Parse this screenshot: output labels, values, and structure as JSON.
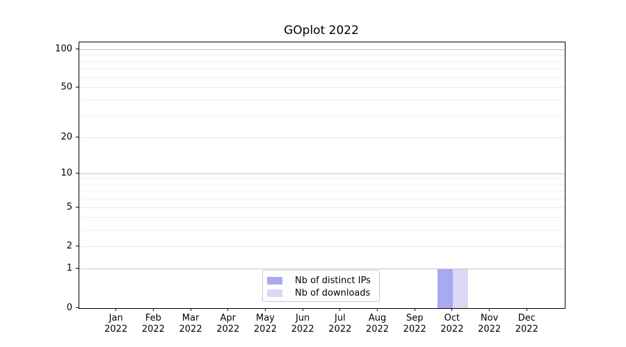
{
  "chart_data": {
    "type": "bar",
    "title": "GOplot 2022",
    "x": {
      "categories": [
        "Jan",
        "Feb",
        "Mar",
        "Apr",
        "May",
        "Jun",
        "Jul",
        "Aug",
        "Sep",
        "Oct",
        "Nov",
        "Dec"
      ],
      "year_label": "2022"
    },
    "y": {
      "scale": "log1p",
      "tick_labels": [
        0,
        1,
        2,
        5,
        10,
        20,
        50,
        100
      ],
      "decade_values": [
        1,
        10,
        100
      ],
      "minor_gridline_values": [
        3,
        4,
        6,
        7,
        8,
        9,
        30,
        40,
        60,
        70,
        80,
        90
      ],
      "axis_max": 113
    },
    "series": [
      {
        "name": "Nb of distinct IPs",
        "color": "#a9a9f2",
        "values": [
          0,
          0,
          0,
          0,
          0,
          0,
          0,
          0,
          0,
          1,
          0,
          0
        ]
      },
      {
        "name": "Nb of downloads",
        "color": "#d9d9f6",
        "values": [
          0,
          0,
          0,
          0,
          0,
          0,
          0,
          0,
          0,
          1,
          0,
          0
        ]
      }
    ],
    "legend": {
      "position": "lower center",
      "entries": [
        "Nb of distinct IPs",
        "Nb of downloads"
      ]
    },
    "colors": {
      "grid_decade": "#c5c5c5",
      "grid_labeled": "#e7e7e7",
      "grid_minor": "#efefef",
      "spine": "#000000",
      "background": "#ffffff"
    }
  }
}
